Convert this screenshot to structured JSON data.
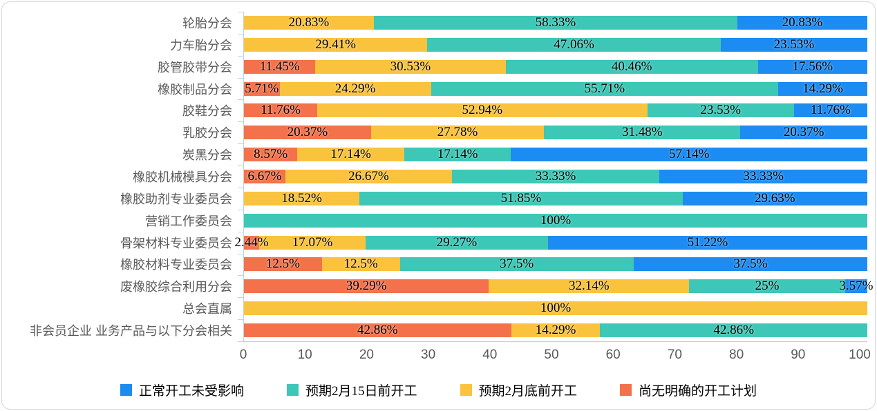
{
  "chart_data": {
    "type": "bar",
    "orientation": "horizontal",
    "stacked": true,
    "unit": "%",
    "x_axis": {
      "min": 0,
      "max": 101.2,
      "ticks": [
        0,
        10,
        20,
        30,
        40,
        50,
        60,
        70,
        80,
        90,
        100
      ]
    },
    "legend_position": "bottom",
    "legend": [
      {
        "name": "正常开工未受影响",
        "color": "#1C8CF2"
      },
      {
        "name": "预期2月15日前开工",
        "color": "#3CC7B6"
      },
      {
        "name": "预期2月底前开工",
        "color": "#FAC33E"
      },
      {
        "name": "尚无明确的开工计划",
        "color": "#F3724B"
      }
    ],
    "stack_order_left_to_right": [
      "尚无明确的开工计划",
      "预期2月底前开工",
      "预期2月15日前开工",
      "正常开工未受影响"
    ],
    "rows": [
      {
        "category": "轮胎分会",
        "segments": [
          {
            "series": "预期2月底前开工",
            "value": 20.83,
            "label": "20.83%"
          },
          {
            "series": "预期2月15日前开工",
            "value": 58.33,
            "label": "58.33%"
          },
          {
            "series": "正常开工未受影响",
            "value": 20.83,
            "label": "20.83%"
          }
        ]
      },
      {
        "category": "力车胎分会",
        "segments": [
          {
            "series": "预期2月底前开工",
            "value": 29.41,
            "label": "29.41%"
          },
          {
            "series": "预期2月15日前开工",
            "value": 47.06,
            "label": "47.06%"
          },
          {
            "series": "正常开工未受影响",
            "value": 23.53,
            "label": "23.53%"
          }
        ]
      },
      {
        "category": "胶管胶带分会",
        "segments": [
          {
            "series": "尚无明确的开工计划",
            "value": 11.45,
            "label": "11.45%"
          },
          {
            "series": "预期2月底前开工",
            "value": 30.53,
            "label": "30.53%"
          },
          {
            "series": "预期2月15日前开工",
            "value": 40.46,
            "label": "40.46%"
          },
          {
            "series": "正常开工未受影响",
            "value": 17.56,
            "label": "17.56%"
          }
        ]
      },
      {
        "category": "橡胶制品分会",
        "segments": [
          {
            "series": "尚无明确的开工计划",
            "value": 5.71,
            "label": "5.71%"
          },
          {
            "series": "预期2月底前开工",
            "value": 24.29,
            "label": "24.29%"
          },
          {
            "series": "预期2月15日前开工",
            "value": 55.71,
            "label": "55.71%"
          },
          {
            "series": "正常开工未受影响",
            "value": 14.29,
            "label": "14.29%"
          }
        ]
      },
      {
        "category": "胶鞋分会",
        "segments": [
          {
            "series": "尚无明确的开工计划",
            "value": 11.76,
            "label": "11.76%"
          },
          {
            "series": "预期2月底前开工",
            "value": 52.94,
            "label": "52.94%"
          },
          {
            "series": "预期2月15日前开工",
            "value": 23.53,
            "label": "23.53%"
          },
          {
            "series": "正常开工未受影响",
            "value": 11.76,
            "label": "11.76%"
          }
        ]
      },
      {
        "category": "乳胶分会",
        "segments": [
          {
            "series": "尚无明确的开工计划",
            "value": 20.37,
            "label": "20.37%"
          },
          {
            "series": "预期2月底前开工",
            "value": 27.78,
            "label": "27.78%"
          },
          {
            "series": "预期2月15日前开工",
            "value": 31.48,
            "label": "31.48%"
          },
          {
            "series": "正常开工未受影响",
            "value": 20.37,
            "label": "20.37%"
          }
        ]
      },
      {
        "category": "炭黑分会",
        "segments": [
          {
            "series": "尚无明确的开工计划",
            "value": 8.57,
            "label": "8.57%"
          },
          {
            "series": "预期2月底前开工",
            "value": 17.14,
            "label": "17.14%"
          },
          {
            "series": "预期2月15日前开工",
            "value": 17.14,
            "label": "17.14%"
          },
          {
            "series": "正常开工未受影响",
            "value": 57.14,
            "label": "57.14%"
          }
        ]
      },
      {
        "category": "橡胶机械模具分会",
        "segments": [
          {
            "series": "尚无明确的开工计划",
            "value": 6.67,
            "label": "6.67%"
          },
          {
            "series": "预期2月底前开工",
            "value": 26.67,
            "label": "26.67%"
          },
          {
            "series": "预期2月15日前开工",
            "value": 33.33,
            "label": "33.33%"
          },
          {
            "series": "正常开工未受影响",
            "value": 33.33,
            "label": "33.33%"
          }
        ]
      },
      {
        "category": "橡胶助剂专业委员会",
        "segments": [
          {
            "series": "预期2月底前开工",
            "value": 18.52,
            "label": "18.52%"
          },
          {
            "series": "预期2月15日前开工",
            "value": 51.85,
            "label": "51.85%"
          },
          {
            "series": "正常开工未受影响",
            "value": 29.63,
            "label": "29.63%"
          }
        ]
      },
      {
        "category": "营销工作委员会",
        "segments": [
          {
            "series": "预期2月15日前开工",
            "value": 100,
            "label": "100%"
          }
        ]
      },
      {
        "category": "骨架材料专业委员会",
        "segments": [
          {
            "series": "尚无明确的开工计划",
            "value": 2.44,
            "label": "2.44%"
          },
          {
            "series": "预期2月底前开工",
            "value": 17.07,
            "label": "17.07%"
          },
          {
            "series": "预期2月15日前开工",
            "value": 29.27,
            "label": "29.27%"
          },
          {
            "series": "正常开工未受影响",
            "value": 51.22,
            "label": "51.22%"
          }
        ]
      },
      {
        "category": "橡胶材料专业委员会",
        "segments": [
          {
            "series": "尚无明确的开工计划",
            "value": 12.5,
            "label": "12.5%"
          },
          {
            "series": "预期2月底前开工",
            "value": 12.5,
            "label": "12.5%"
          },
          {
            "series": "预期2月15日前开工",
            "value": 37.5,
            "label": "37.5%"
          },
          {
            "series": "正常开工未受影响",
            "value": 37.5,
            "label": "37.5%"
          }
        ]
      },
      {
        "category": "废橡胶综合利用分会",
        "segments": [
          {
            "series": "尚无明确的开工计划",
            "value": 39.29,
            "label": "39.29%"
          },
          {
            "series": "预期2月底前开工",
            "value": 32.14,
            "label": "32.14%"
          },
          {
            "series": "预期2月15日前开工",
            "value": 25,
            "label": "25%"
          },
          {
            "series": "正常开工未受影响",
            "value": 3.57,
            "label": "3.57%"
          }
        ]
      },
      {
        "category": "总会直属",
        "segments": [
          {
            "series": "预期2月底前开工",
            "value": 100,
            "label": "100%"
          }
        ]
      },
      {
        "category": "非会员企业 业务产品与以下分会相关",
        "segments": [
          {
            "series": "尚无明确的开工计划",
            "value": 42.86,
            "label": "42.86%"
          },
          {
            "series": "预期2月底前开工",
            "value": 14.29,
            "label": "14.29%"
          },
          {
            "series": "预期2月15日前开工",
            "value": 42.86,
            "label": "42.86%"
          }
        ]
      }
    ],
    "colors": {
      "category_label": "#595959",
      "axis_tick_label": "#595959",
      "data_label": "#000000",
      "category_axis_line": "#bcd2e8",
      "value_axis_line": "#c6c6c6",
      "card_border": "#d9d9d9",
      "background": "#ffffff"
    }
  }
}
